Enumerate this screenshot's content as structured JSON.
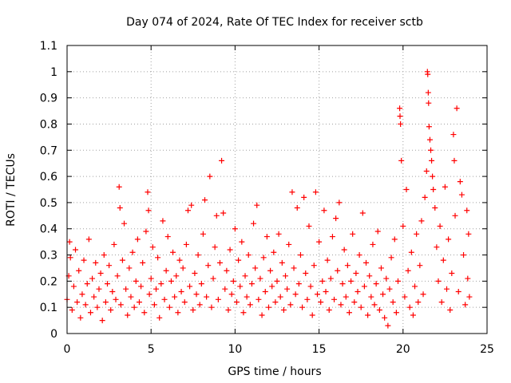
{
  "chart_data": {
    "type": "scatter",
    "title": "Day 074 of 2024, Rate Of TEC Index for receiver sctb",
    "xlabel": "GPS time / hours",
    "ylabel": "ROTI / TECUs",
    "xlim": [
      0,
      25
    ],
    "ylim": [
      0,
      1.1
    ],
    "xticks": [
      0,
      5,
      10,
      15,
      20,
      25
    ],
    "xtick_labels": [
      "0",
      "5",
      "10",
      "15",
      "20",
      "25"
    ],
    "yticks": [
      0,
      0.1,
      0.2,
      0.3,
      0.4,
      0.5,
      0.6,
      0.7,
      0.8,
      0.9,
      1.0,
      1.1
    ],
    "ytick_labels": [
      "0",
      "0.1",
      "0.2",
      "0.3",
      "0.4",
      "0.5",
      "0.6",
      "0.7",
      "0.8",
      "0.9",
      "1",
      "1.1"
    ],
    "grid": true,
    "marker": "+",
    "color": "#ff0000",
    "series": [
      {
        "name": "ROTI",
        "points": [
          [
            0.0,
            0.13
          ],
          [
            0.1,
            0.22
          ],
          [
            0.15,
            0.35
          ],
          [
            0.2,
            0.29
          ],
          [
            0.3,
            0.09
          ],
          [
            0.4,
            0.18
          ],
          [
            0.5,
            0.32
          ],
          [
            0.6,
            0.12
          ],
          [
            0.7,
            0.24
          ],
          [
            0.8,
            0.06
          ],
          [
            0.9,
            0.15
          ],
          [
            1.0,
            0.28
          ],
          [
            1.1,
            0.11
          ],
          [
            1.2,
            0.19
          ],
          [
            1.3,
            0.36
          ],
          [
            1.4,
            0.08
          ],
          [
            1.5,
            0.21
          ],
          [
            1.6,
            0.14
          ],
          [
            1.7,
            0.27
          ],
          [
            1.8,
            0.1
          ],
          [
            1.9,
            0.17
          ],
          [
            2.0,
            0.23
          ],
          [
            2.1,
            0.05
          ],
          [
            2.2,
            0.3
          ],
          [
            2.3,
            0.12
          ],
          [
            2.4,
            0.19
          ],
          [
            2.5,
            0.26
          ],
          [
            2.6,
            0.09
          ],
          [
            2.7,
            0.16
          ],
          [
            2.8,
            0.34
          ],
          [
            2.9,
            0.13
          ],
          [
            3.0,
            0.22
          ],
          [
            3.1,
            0.56
          ],
          [
            3.15,
            0.48
          ],
          [
            3.2,
            0.11
          ],
          [
            3.3,
            0.28
          ],
          [
            3.4,
            0.42
          ],
          [
            3.5,
            0.17
          ],
          [
            3.6,
            0.07
          ],
          [
            3.7,
            0.25
          ],
          [
            3.8,
            0.14
          ],
          [
            3.9,
            0.31
          ],
          [
            4.0,
            0.1
          ],
          [
            4.1,
            0.2
          ],
          [
            4.2,
            0.36
          ],
          [
            4.3,
            0.12
          ],
          [
            4.4,
            0.18
          ],
          [
            4.5,
            0.27
          ],
          [
            4.6,
            0.08
          ],
          [
            4.7,
            0.39
          ],
          [
            4.8,
            0.54
          ],
          [
            4.85,
            0.47
          ],
          [
            4.9,
            0.15
          ],
          [
            5.0,
            0.21
          ],
          [
            5.1,
            0.33
          ],
          [
            5.2,
            0.11
          ],
          [
            5.3,
            0.17
          ],
          [
            5.4,
            0.29
          ],
          [
            5.5,
            0.06
          ],
          [
            5.6,
            0.19
          ],
          [
            5.7,
            0.43
          ],
          [
            5.8,
            0.13
          ],
          [
            5.9,
            0.24
          ],
          [
            6.0,
            0.37
          ],
          [
            6.1,
            0.1
          ],
          [
            6.2,
            0.2
          ],
          [
            6.3,
            0.31
          ],
          [
            6.4,
            0.14
          ],
          [
            6.5,
            0.22
          ],
          [
            6.6,
            0.08
          ],
          [
            6.7,
            0.28
          ],
          [
            6.8,
            0.16
          ],
          [
            6.9,
            0.25
          ],
          [
            7.0,
            0.12
          ],
          [
            7.1,
            0.34
          ],
          [
            7.2,
            0.47
          ],
          [
            7.3,
            0.18
          ],
          [
            7.4,
            0.49
          ],
          [
            7.5,
            0.09
          ],
          [
            7.6,
            0.23
          ],
          [
            7.7,
            0.15
          ],
          [
            7.8,
            0.3
          ],
          [
            7.9,
            0.11
          ],
          [
            8.0,
            0.19
          ],
          [
            8.1,
            0.38
          ],
          [
            8.2,
            0.51
          ],
          [
            8.3,
            0.14
          ],
          [
            8.4,
            0.26
          ],
          [
            8.5,
            0.6
          ],
          [
            8.6,
            0.1
          ],
          [
            8.7,
            0.21
          ],
          [
            8.8,
            0.33
          ],
          [
            8.9,
            0.45
          ],
          [
            9.0,
            0.13
          ],
          [
            9.1,
            0.27
          ],
          [
            9.2,
            0.66
          ],
          [
            9.3,
            0.46
          ],
          [
            9.4,
            0.17
          ],
          [
            9.5,
            0.24
          ],
          [
            9.6,
            0.09
          ],
          [
            9.7,
            0.32
          ],
          [
            9.8,
            0.15
          ],
          [
            9.9,
            0.2
          ],
          [
            10.0,
            0.4
          ],
          [
            10.1,
            0.12
          ],
          [
            10.2,
            0.28
          ],
          [
            10.3,
            0.18
          ],
          [
            10.4,
            0.35
          ],
          [
            10.5,
            0.08
          ],
          [
            10.6,
            0.22
          ],
          [
            10.7,
            0.14
          ],
          [
            10.8,
            0.3
          ],
          [
            10.9,
            0.11
          ],
          [
            11.0,
            0.19
          ],
          [
            11.1,
            0.42
          ],
          [
            11.2,
            0.25
          ],
          [
            11.3,
            0.49
          ],
          [
            11.4,
            0.13
          ],
          [
            11.5,
            0.21
          ],
          [
            11.6,
            0.07
          ],
          [
            11.7,
            0.29
          ],
          [
            11.8,
            0.16
          ],
          [
            11.9,
            0.37
          ],
          [
            12.0,
            0.1
          ],
          [
            12.1,
            0.24
          ],
          [
            12.2,
            0.18
          ],
          [
            12.3,
            0.31
          ],
          [
            12.4,
            0.12
          ],
          [
            12.5,
            0.2
          ],
          [
            12.6,
            0.38
          ],
          [
            12.7,
            0.14
          ],
          [
            12.8,
            0.27
          ],
          [
            12.9,
            0.09
          ],
          [
            13.0,
            0.22
          ],
          [
            13.1,
            0.17
          ],
          [
            13.2,
            0.34
          ],
          [
            13.3,
            0.11
          ],
          [
            13.4,
            0.54
          ],
          [
            13.5,
            0.25
          ],
          [
            13.6,
            0.15
          ],
          [
            13.7,
            0.48
          ],
          [
            13.8,
            0.19
          ],
          [
            13.9,
            0.3
          ],
          [
            14.0,
            0.1
          ],
          [
            14.1,
            0.52
          ],
          [
            14.2,
            0.23
          ],
          [
            14.3,
            0.13
          ],
          [
            14.4,
            0.41
          ],
          [
            14.5,
            0.18
          ],
          [
            14.6,
            0.07
          ],
          [
            14.7,
            0.26
          ],
          [
            14.8,
            0.54
          ],
          [
            14.9,
            0.15
          ],
          [
            15.0,
            0.35
          ],
          [
            15.1,
            0.12
          ],
          [
            15.2,
            0.2
          ],
          [
            15.3,
            0.47
          ],
          [
            15.4,
            0.16
          ],
          [
            15.5,
            0.28
          ],
          [
            15.6,
            0.09
          ],
          [
            15.7,
            0.21
          ],
          [
            15.8,
            0.37
          ],
          [
            15.9,
            0.13
          ],
          [
            16.0,
            0.44
          ],
          [
            16.1,
            0.24
          ],
          [
            16.2,
            0.5
          ],
          [
            16.3,
            0.11
          ],
          [
            16.4,
            0.19
          ],
          [
            16.5,
            0.32
          ],
          [
            16.6,
            0.14
          ],
          [
            16.7,
            0.26
          ],
          [
            16.8,
            0.08
          ],
          [
            16.9,
            0.2
          ],
          [
            17.0,
            0.38
          ],
          [
            17.1,
            0.12
          ],
          [
            17.2,
            0.23
          ],
          [
            17.3,
            0.16
          ],
          [
            17.4,
            0.3
          ],
          [
            17.5,
            0.1
          ],
          [
            17.6,
            0.46
          ],
          [
            17.7,
            0.18
          ],
          [
            17.8,
            0.27
          ],
          [
            17.9,
            0.07
          ],
          [
            18.0,
            0.22
          ],
          [
            18.1,
            0.14
          ],
          [
            18.2,
            0.34
          ],
          [
            18.3,
            0.11
          ],
          [
            18.4,
            0.19
          ],
          [
            18.5,
            0.39
          ],
          [
            18.6,
            0.09
          ],
          [
            18.7,
            0.25
          ],
          [
            18.8,
            0.15
          ],
          [
            18.9,
            0.06
          ],
          [
            19.0,
            0.21
          ],
          [
            19.1,
            0.03
          ],
          [
            19.2,
            0.17
          ],
          [
            19.3,
            0.29
          ],
          [
            19.4,
            0.12
          ],
          [
            19.5,
            0.36
          ],
          [
            19.6,
            0.08
          ],
          [
            19.7,
            0.2
          ],
          [
            19.8,
            0.86
          ],
          [
            19.82,
            0.83
          ],
          [
            19.85,
            0.8
          ],
          [
            19.9,
            0.66
          ],
          [
            20.0,
            0.41
          ],
          [
            20.1,
            0.14
          ],
          [
            20.2,
            0.55
          ],
          [
            20.3,
            0.24
          ],
          [
            20.4,
            0.1
          ],
          [
            20.5,
            0.31
          ],
          [
            20.6,
            0.07
          ],
          [
            20.7,
            0.18
          ],
          [
            20.8,
            0.38
          ],
          [
            20.9,
            0.12
          ],
          [
            21.0,
            0.26
          ],
          [
            21.1,
            0.43
          ],
          [
            21.2,
            0.15
          ],
          [
            21.3,
            0.52
          ],
          [
            21.4,
            0.62
          ],
          [
            21.45,
            1.0
          ],
          [
            21.47,
            0.99
          ],
          [
            21.5,
            0.92
          ],
          [
            21.52,
            0.88
          ],
          [
            21.55,
            0.79
          ],
          [
            21.6,
            0.74
          ],
          [
            21.65,
            0.7
          ],
          [
            21.7,
            0.66
          ],
          [
            21.75,
            0.6
          ],
          [
            21.8,
            0.55
          ],
          [
            21.9,
            0.48
          ],
          [
            22.0,
            0.33
          ],
          [
            22.1,
            0.2
          ],
          [
            22.2,
            0.41
          ],
          [
            22.3,
            0.12
          ],
          [
            22.4,
            0.28
          ],
          [
            22.5,
            0.56
          ],
          [
            22.6,
            0.17
          ],
          [
            22.7,
            0.36
          ],
          [
            22.8,
            0.09
          ],
          [
            22.9,
            0.23
          ],
          [
            23.0,
            0.76
          ],
          [
            23.05,
            0.66
          ],
          [
            23.1,
            0.45
          ],
          [
            23.2,
            0.86
          ],
          [
            23.3,
            0.16
          ],
          [
            23.4,
            0.58
          ],
          [
            23.5,
            0.53
          ],
          [
            23.6,
            0.3
          ],
          [
            23.7,
            0.11
          ],
          [
            23.8,
            0.47
          ],
          [
            23.85,
            0.21
          ],
          [
            23.9,
            0.38
          ],
          [
            23.95,
            0.14
          ]
        ]
      }
    ]
  }
}
